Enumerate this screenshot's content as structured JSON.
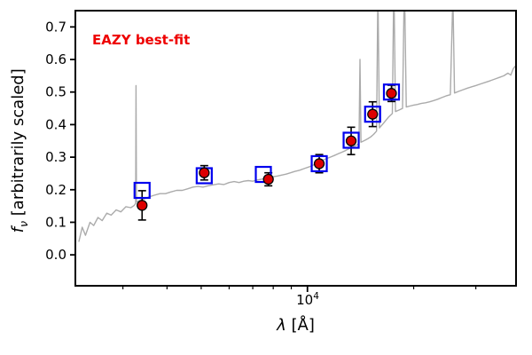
{
  "chart_data": {
    "type": "line",
    "annotation": "EAZY best-fit",
    "annotation_color": "#ee0000",
    "xlabel_lambda": "λ",
    "xlabel_rest": " [Å]",
    "ylabel_f": "f",
    "ylabel_sub": "ν",
    "ylabel_rest": " [arbitrarily scaled]",
    "xtick_base": "10",
    "xtick_exp": "4",
    "x_scale": "log",
    "xlim": [
      2200,
      39000
    ],
    "ylim": [
      -0.095,
      0.75
    ],
    "yticks": [
      0.0,
      0.1,
      0.2,
      0.3,
      0.4,
      0.5,
      0.6,
      0.7
    ],
    "xticks_major": [
      10000
    ],
    "xticks_minor": [
      3000,
      4000,
      5000,
      6000,
      7000,
      8000,
      9000,
      20000,
      30000
    ],
    "grid": false,
    "legend": "none",
    "colors": {
      "spectrum": "#ababab",
      "model_squares": "#0000ee",
      "observed_points": "#dd0000",
      "errorbars": "#000000",
      "frame": "#000000"
    },
    "series": [
      {
        "name": "eazy-template-spectrum",
        "type": "line",
        "points": [
          [
            2250,
            0.04
          ],
          [
            2300,
            0.085
          ],
          [
            2350,
            0.06
          ],
          [
            2420,
            0.1
          ],
          [
            2480,
            0.09
          ],
          [
            2550,
            0.115
          ],
          [
            2620,
            0.105
          ],
          [
            2700,
            0.128
          ],
          [
            2780,
            0.122
          ],
          [
            2870,
            0.138
          ],
          [
            2960,
            0.132
          ],
          [
            3060,
            0.148
          ],
          [
            3160,
            0.145
          ],
          [
            3230,
            0.152
          ],
          [
            3260,
            0.158
          ],
          [
            3268,
            0.52
          ],
          [
            3278,
            0.162
          ],
          [
            3360,
            0.168
          ],
          [
            3460,
            0.172
          ],
          [
            3560,
            0.178
          ],
          [
            3680,
            0.183
          ],
          [
            3820,
            0.188
          ],
          [
            3960,
            0.188
          ],
          [
            4100,
            0.193
          ],
          [
            4260,
            0.198
          ],
          [
            4420,
            0.198
          ],
          [
            4580,
            0.203
          ],
          [
            4740,
            0.208
          ],
          [
            4900,
            0.21
          ],
          [
            5060,
            0.208
          ],
          [
            5220,
            0.212
          ],
          [
            5400,
            0.215
          ],
          [
            5600,
            0.218
          ],
          [
            5800,
            0.216
          ],
          [
            6000,
            0.222
          ],
          [
            6200,
            0.225
          ],
          [
            6400,
            0.222
          ],
          [
            6600,
            0.226
          ],
          [
            6800,
            0.228
          ],
          [
            7000,
            0.226
          ],
          [
            7200,
            0.23
          ],
          [
            7400,
            0.232
          ],
          [
            7600,
            0.235
          ],
          [
            7800,
            0.237
          ],
          [
            8000,
            0.24
          ],
          [
            8200,
            0.242
          ],
          [
            8450,
            0.245
          ],
          [
            8700,
            0.248
          ],
          [
            8950,
            0.252
          ],
          [
            9200,
            0.256
          ],
          [
            9500,
            0.26
          ],
          [
            9800,
            0.265
          ],
          [
            10100,
            0.27
          ],
          [
            10400,
            0.276
          ],
          [
            10700,
            0.283
          ],
          [
            11000,
            0.29
          ],
          [
            11300,
            0.295
          ],
          [
            11600,
            0.3
          ],
          [
            11900,
            0.305
          ],
          [
            12200,
            0.31
          ],
          [
            12500,
            0.315
          ],
          [
            12800,
            0.32
          ],
          [
            13100,
            0.326
          ],
          [
            13400,
            0.331
          ],
          [
            13700,
            0.336
          ],
          [
            14000,
            0.341
          ],
          [
            14090,
            0.6
          ],
          [
            14180,
            0.346
          ],
          [
            14500,
            0.351
          ],
          [
            14800,
            0.356
          ],
          [
            15100,
            0.362
          ],
          [
            15400,
            0.37
          ],
          [
            15700,
            0.38
          ],
          [
            15840,
            0.82
          ],
          [
            15990,
            0.39
          ],
          [
            16300,
            0.4
          ],
          [
            16600,
            0.41
          ],
          [
            17000,
            0.424
          ],
          [
            17400,
            0.434
          ],
          [
            17570,
            0.85
          ],
          [
            17760,
            0.44
          ],
          [
            18200,
            0.445
          ],
          [
            18600,
            0.45
          ],
          [
            18830,
            0.85
          ],
          [
            19060,
            0.454
          ],
          [
            19500,
            0.457
          ],
          [
            20000,
            0.46
          ],
          [
            20500,
            0.462
          ],
          [
            21000,
            0.465
          ],
          [
            21600,
            0.467
          ],
          [
            22200,
            0.47
          ],
          [
            22800,
            0.474
          ],
          [
            23400,
            0.478
          ],
          [
            24000,
            0.483
          ],
          [
            24700,
            0.488
          ],
          [
            25400,
            0.492
          ],
          [
            25840,
            0.8
          ],
          [
            26100,
            0.497
          ],
          [
            26800,
            0.502
          ],
          [
            27600,
            0.507
          ],
          [
            28400,
            0.512
          ],
          [
            29200,
            0.516
          ],
          [
            30000,
            0.52
          ],
          [
            31000,
            0.525
          ],
          [
            32000,
            0.53
          ],
          [
            33000,
            0.535
          ],
          [
            34000,
            0.54
          ],
          [
            35000,
            0.545
          ],
          [
            36000,
            0.55
          ],
          [
            37000,
            0.558
          ],
          [
            37700,
            0.552
          ],
          [
            38300,
            0.572
          ],
          [
            39000,
            0.582
          ]
        ]
      },
      {
        "name": "model-photometry",
        "type": "scatter-open-square",
        "points": [
          [
            3400,
            0.198
          ],
          [
            5100,
            0.243
          ],
          [
            7500,
            0.247
          ],
          [
            10800,
            0.28
          ],
          [
            13300,
            0.352
          ],
          [
            15300,
            0.432
          ],
          [
            17300,
            0.5
          ]
        ]
      },
      {
        "name": "observed-photometry",
        "type": "scatter-errorbar-circle",
        "points": [
          [
            3400,
            0.152,
            0.045
          ],
          [
            5100,
            0.252,
            0.022
          ],
          [
            7750,
            0.232,
            0.02
          ],
          [
            10800,
            0.28,
            0.028
          ],
          [
            13300,
            0.35,
            0.042
          ],
          [
            15300,
            0.432,
            0.038
          ],
          [
            17300,
            0.496,
            0.025
          ]
        ]
      }
    ]
  }
}
